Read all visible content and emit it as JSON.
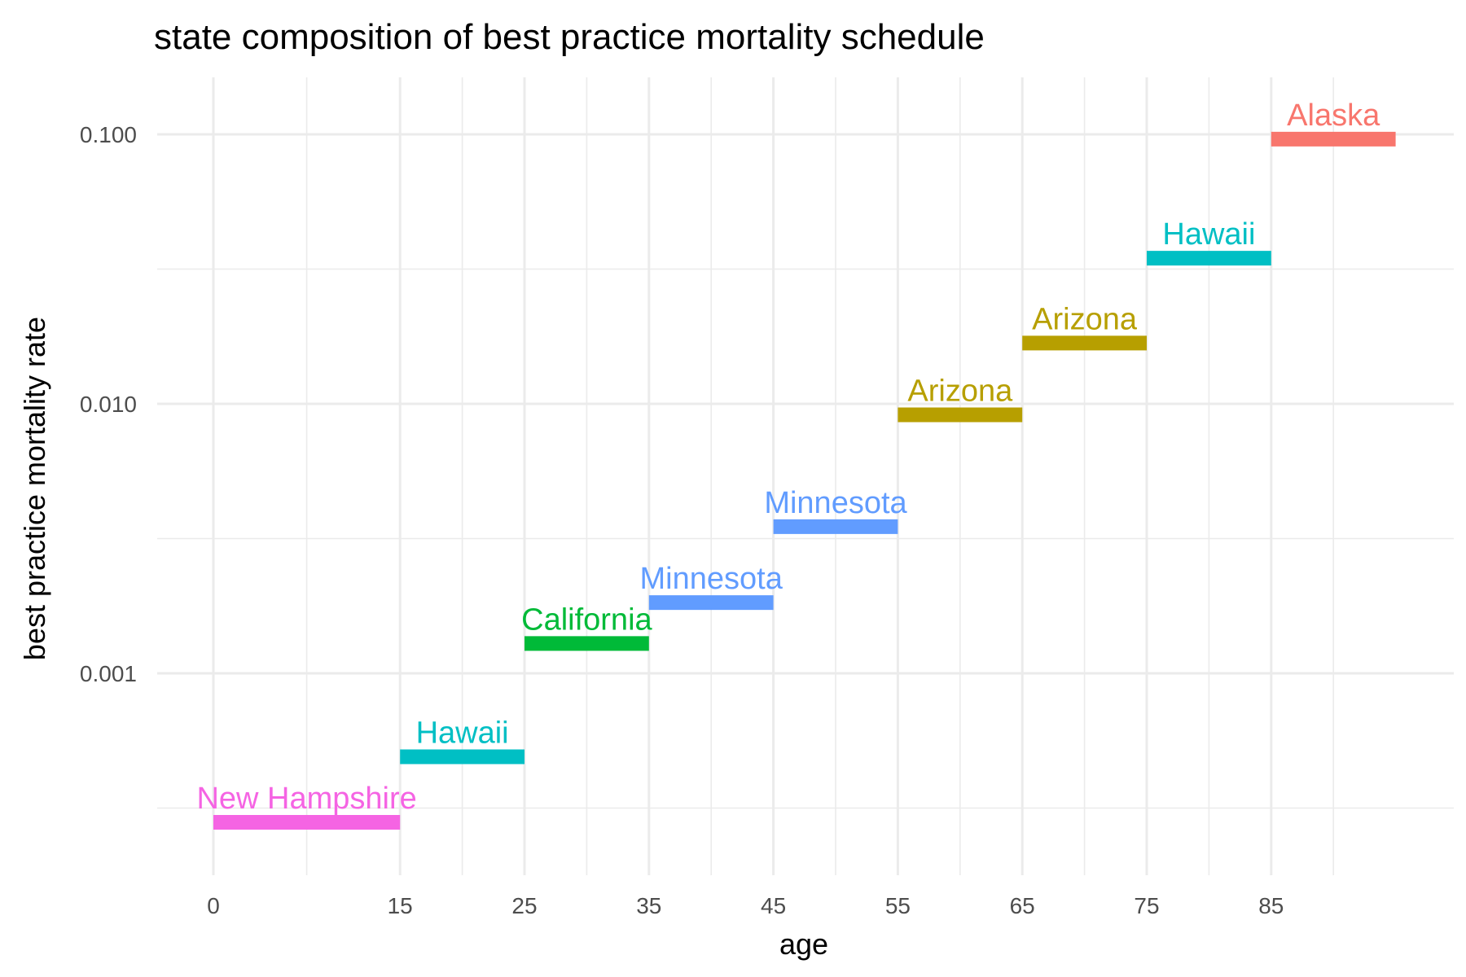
{
  "chart_data": {
    "type": "line",
    "title": "state composition of best practice mortality schedule",
    "xlabel": "age",
    "ylabel": "best practice mortality rate",
    "y_scale": "log10",
    "grid": true,
    "legend": "none",
    "xlim": [
      0,
      95
    ],
    "ylim": [
      0.00024,
      0.16
    ],
    "x_ticks": [
      0,
      15,
      25,
      35,
      45,
      55,
      65,
      75,
      85
    ],
    "x_tick_labels": [
      "0",
      "15",
      "25",
      "35",
      "45",
      "55",
      "65",
      "75",
      "85"
    ],
    "y_ticks": [
      0.001,
      0.01,
      0.1
    ],
    "y_tick_labels": [
      "0.001",
      "0.010",
      "0.100"
    ],
    "segments": [
      {
        "state": "New Hampshire",
        "age_start": 0,
        "age_end": 15,
        "rate": 0.00028,
        "color": "#F564E3"
      },
      {
        "state": "Hawaii",
        "age_start": 15,
        "age_end": 25,
        "rate": 0.00049,
        "color": "#00BFC4"
      },
      {
        "state": "California",
        "age_start": 25,
        "age_end": 35,
        "rate": 0.00129,
        "color": "#00BA38"
      },
      {
        "state": "Minnesota",
        "age_start": 35,
        "age_end": 45,
        "rate": 0.00183,
        "color": "#619CFF"
      },
      {
        "state": "Minnesota",
        "age_start": 45,
        "age_end": 55,
        "rate": 0.0035,
        "color": "#619CFF"
      },
      {
        "state": "Arizona",
        "age_start": 55,
        "age_end": 65,
        "rate": 0.0091,
        "color": "#B79F00"
      },
      {
        "state": "Arizona",
        "age_start": 65,
        "age_end": 75,
        "rate": 0.0168,
        "color": "#B79F00"
      },
      {
        "state": "Hawaii",
        "age_start": 75,
        "age_end": 85,
        "rate": 0.0347,
        "color": "#00BFC4"
      },
      {
        "state": "Alaska",
        "age_start": 85,
        "age_end": 95,
        "rate": 0.096,
        "color": "#F8766D"
      }
    ]
  }
}
